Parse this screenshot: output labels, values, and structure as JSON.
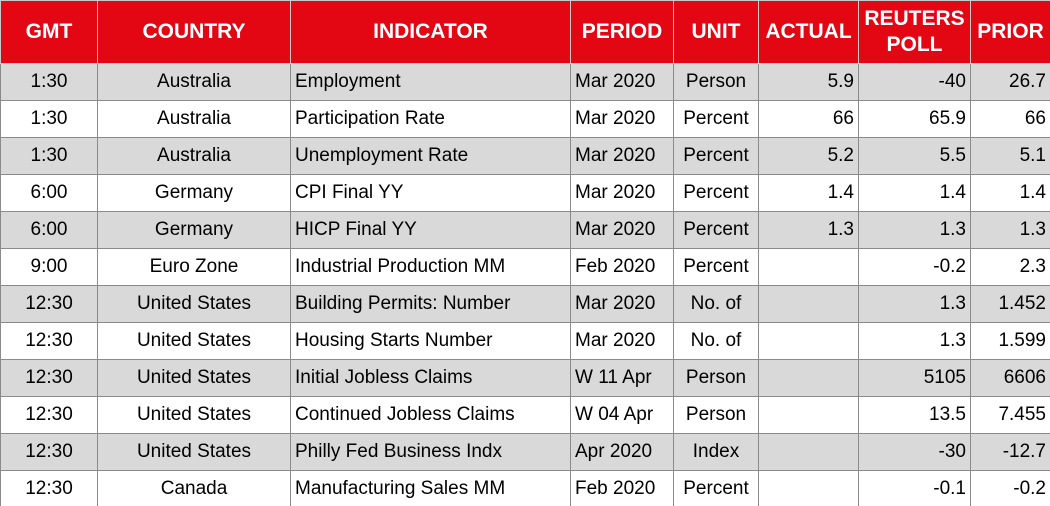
{
  "table": {
    "header": [
      "GMT",
      "COUNTRY",
      "INDICATOR",
      "PERIOD",
      "UNIT",
      "ACTUAL",
      "REUTERS POLL",
      "PRIOR"
    ],
    "rows": [
      [
        "1:30",
        "Australia",
        "Employment",
        "Mar 2020",
        "Person",
        "5.9",
        "-40",
        "26.7"
      ],
      [
        "1:30",
        "Australia",
        "Participation Rate",
        "Mar 2020",
        "Percent",
        "66",
        "65.9",
        "66"
      ],
      [
        "1:30",
        "Australia",
        "Unemployment Rate",
        "Mar 2020",
        "Percent",
        "5.2",
        "5.5",
        "5.1"
      ],
      [
        "6:00",
        "Germany",
        "CPI Final YY",
        "Mar 2020",
        "Percent",
        "1.4",
        "1.4",
        "1.4"
      ],
      [
        "6:00",
        "Germany",
        "HICP Final YY",
        "Mar 2020",
        "Percent",
        "1.3",
        "1.3",
        "1.3"
      ],
      [
        "9:00",
        "Euro Zone",
        "Industrial Production MM",
        "Feb 2020",
        "Percent",
        null,
        "-0.2",
        "2.3"
      ],
      [
        "12:30",
        "United States",
        "Building Permits: Number",
        "Mar 2020",
        "No. of",
        null,
        "1.3",
        "1.452"
      ],
      [
        "12:30",
        "United States",
        "Housing Starts Number",
        "Mar 2020",
        "No. of",
        null,
        "1.3",
        "1.599"
      ],
      [
        "12:30",
        "United States",
        "Initial Jobless Claims",
        "W 11 Apr",
        "Person",
        null,
        "5105",
        "6606"
      ],
      [
        "12:30",
        "United States",
        "Continued Jobless Claims",
        "W 04 Apr",
        "Person",
        null,
        "13.5",
        "7.455"
      ],
      [
        "12:30",
        "United States",
        "Philly Fed Business Indx",
        "Apr 2020",
        "Index",
        null,
        "-30",
        "-12.7"
      ],
      [
        "12:30",
        "Canada",
        "Manufacturing Sales MM",
        "Feb 2020",
        "Percent",
        null,
        "-0.1",
        "-0.2"
      ]
    ]
  }
}
